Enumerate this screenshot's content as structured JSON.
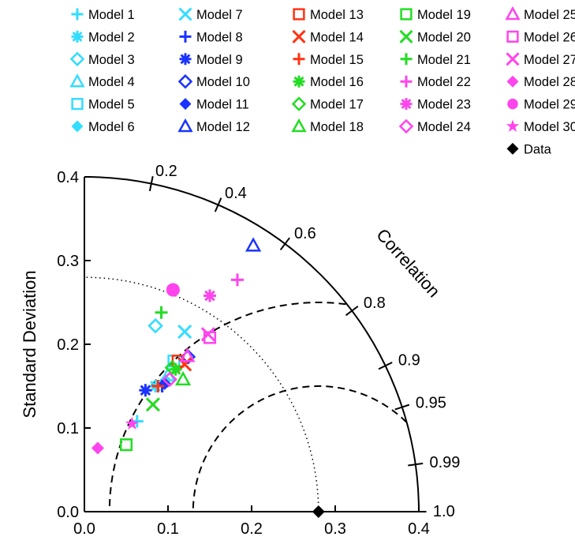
{
  "chart_data": {
    "type": "scatter",
    "title": "",
    "xlabel": "",
    "ylabel": "Standard Deviation",
    "xlim": [
      0,
      0.4
    ],
    "ylim": [
      0,
      0.4
    ],
    "x_ticks": [
      "0.0",
      "0.1",
      "0.2",
      "0.3",
      "0.4"
    ],
    "y_ticks": [
      "0.0",
      "0.1",
      "0.2",
      "0.3",
      "0.4"
    ],
    "correlation_label": "Correlation",
    "correlation_ticks": [
      {
        "value": 0.2,
        "label": "0.2"
      },
      {
        "value": 0.4,
        "label": "0.4"
      },
      {
        "value": 0.6,
        "label": "0.6"
      },
      {
        "value": 0.8,
        "label": "0.8"
      },
      {
        "value": 0.9,
        "label": "0.9"
      },
      {
        "value": 0.95,
        "label": "0.95"
      },
      {
        "value": 0.99,
        "label": "0.99"
      },
      {
        "value": 1.0,
        "label": "1.0"
      }
    ],
    "reference_std": 0.28,
    "rms_arcs": [
      0.15,
      0.25
    ],
    "legend_position": "top",
    "series": [
      {
        "name": "Model 1",
        "marker": "plus",
        "color": "#33ddff",
        "x": 0.063,
        "y": 0.108
      },
      {
        "name": "Model 2",
        "marker": "asterisk",
        "color": "#33ddff",
        "x": 0.085,
        "y": 0.15
      },
      {
        "name": "Model 3",
        "marker": "diamond",
        "color": "#33ddff",
        "x": 0.085,
        "y": 0.222
      },
      {
        "name": "Model 4",
        "marker": "triangle",
        "color": "#33ddff",
        "x": 0.1,
        "y": 0.163
      },
      {
        "name": "Model 5",
        "marker": "square",
        "color": "#33ddff",
        "x": 0.107,
        "y": 0.18
      },
      {
        "name": "Model 6",
        "marker": "diamondf",
        "color": "#33ddff",
        "x": 0.097,
        "y": 0.157
      },
      {
        "name": "Model 7",
        "marker": "x",
        "color": "#33ddff",
        "x": 0.12,
        "y": 0.215
      },
      {
        "name": "Model 8",
        "marker": "plus",
        "color": "#1a33ff",
        "x": 0.093,
        "y": 0.15
      },
      {
        "name": "Model 9",
        "marker": "asterisk",
        "color": "#1a33ff",
        "x": 0.073,
        "y": 0.145
      },
      {
        "name": "Model 10",
        "marker": "diamond",
        "color": "#1a33ff",
        "x": 0.124,
        "y": 0.185
      },
      {
        "name": "Model 11",
        "marker": "diamondf",
        "color": "#1a33ff",
        "x": 0.096,
        "y": 0.153
      },
      {
        "name": "Model 12",
        "marker": "triangle",
        "color": "#1a33ff",
        "x": 0.202,
        "y": 0.318
      },
      {
        "name": "Model 13",
        "marker": "square",
        "color": "#ff3311",
        "x": 0.112,
        "y": 0.18
      },
      {
        "name": "Model 14",
        "marker": "x",
        "color": "#ff3311",
        "x": 0.12,
        "y": 0.176
      },
      {
        "name": "Model 15",
        "marker": "plus",
        "color": "#ff3311",
        "x": 0.088,
        "y": 0.15
      },
      {
        "name": "Model 16",
        "marker": "asterisk",
        "color": "#22dd22",
        "x": 0.109,
        "y": 0.17
      },
      {
        "name": "Model 17",
        "marker": "diamond",
        "color": "#22dd22",
        "x": 0.105,
        "y": 0.172
      },
      {
        "name": "Model 18",
        "marker": "triangle",
        "color": "#22dd22",
        "x": 0.118,
        "y": 0.158
      },
      {
        "name": "Model 19",
        "marker": "square",
        "color": "#22dd22",
        "x": 0.05,
        "y": 0.08
      },
      {
        "name": "Model 20",
        "marker": "x",
        "color": "#22dd22",
        "x": 0.082,
        "y": 0.128
      },
      {
        "name": "Model 21",
        "marker": "plus",
        "color": "#22dd22",
        "x": 0.092,
        "y": 0.238
      },
      {
        "name": "Model 22",
        "marker": "plus",
        "color": "#ff44ee",
        "x": 0.183,
        "y": 0.277
      },
      {
        "name": "Model 23",
        "marker": "asterisk",
        "color": "#ff44ee",
        "x": 0.15,
        "y": 0.258
      },
      {
        "name": "Model 24",
        "marker": "diamond",
        "color": "#ff44ee",
        "x": 0.102,
        "y": 0.158
      },
      {
        "name": "Model 25",
        "marker": "triangle",
        "color": "#ff44ee",
        "x": 0.123,
        "y": 0.186
      },
      {
        "name": "Model 26",
        "marker": "square",
        "color": "#ff44ee",
        "x": 0.15,
        "y": 0.208
      },
      {
        "name": "Model 27",
        "marker": "x",
        "color": "#ff44ee",
        "x": 0.148,
        "y": 0.212
      },
      {
        "name": "Model 28",
        "marker": "diamondf",
        "color": "#ff44ee",
        "x": 0.016,
        "y": 0.076
      },
      {
        "name": "Model 29",
        "marker": "circle",
        "color": "#ff44ee",
        "x": 0.106,
        "y": 0.265
      },
      {
        "name": "Model 30",
        "marker": "star",
        "color": "#ff44ee",
        "x": 0.057,
        "y": 0.105
      },
      {
        "name": "Data",
        "marker": "diamondf",
        "color": "#000000",
        "x": 0.28,
        "y": 0.0
      }
    ]
  }
}
